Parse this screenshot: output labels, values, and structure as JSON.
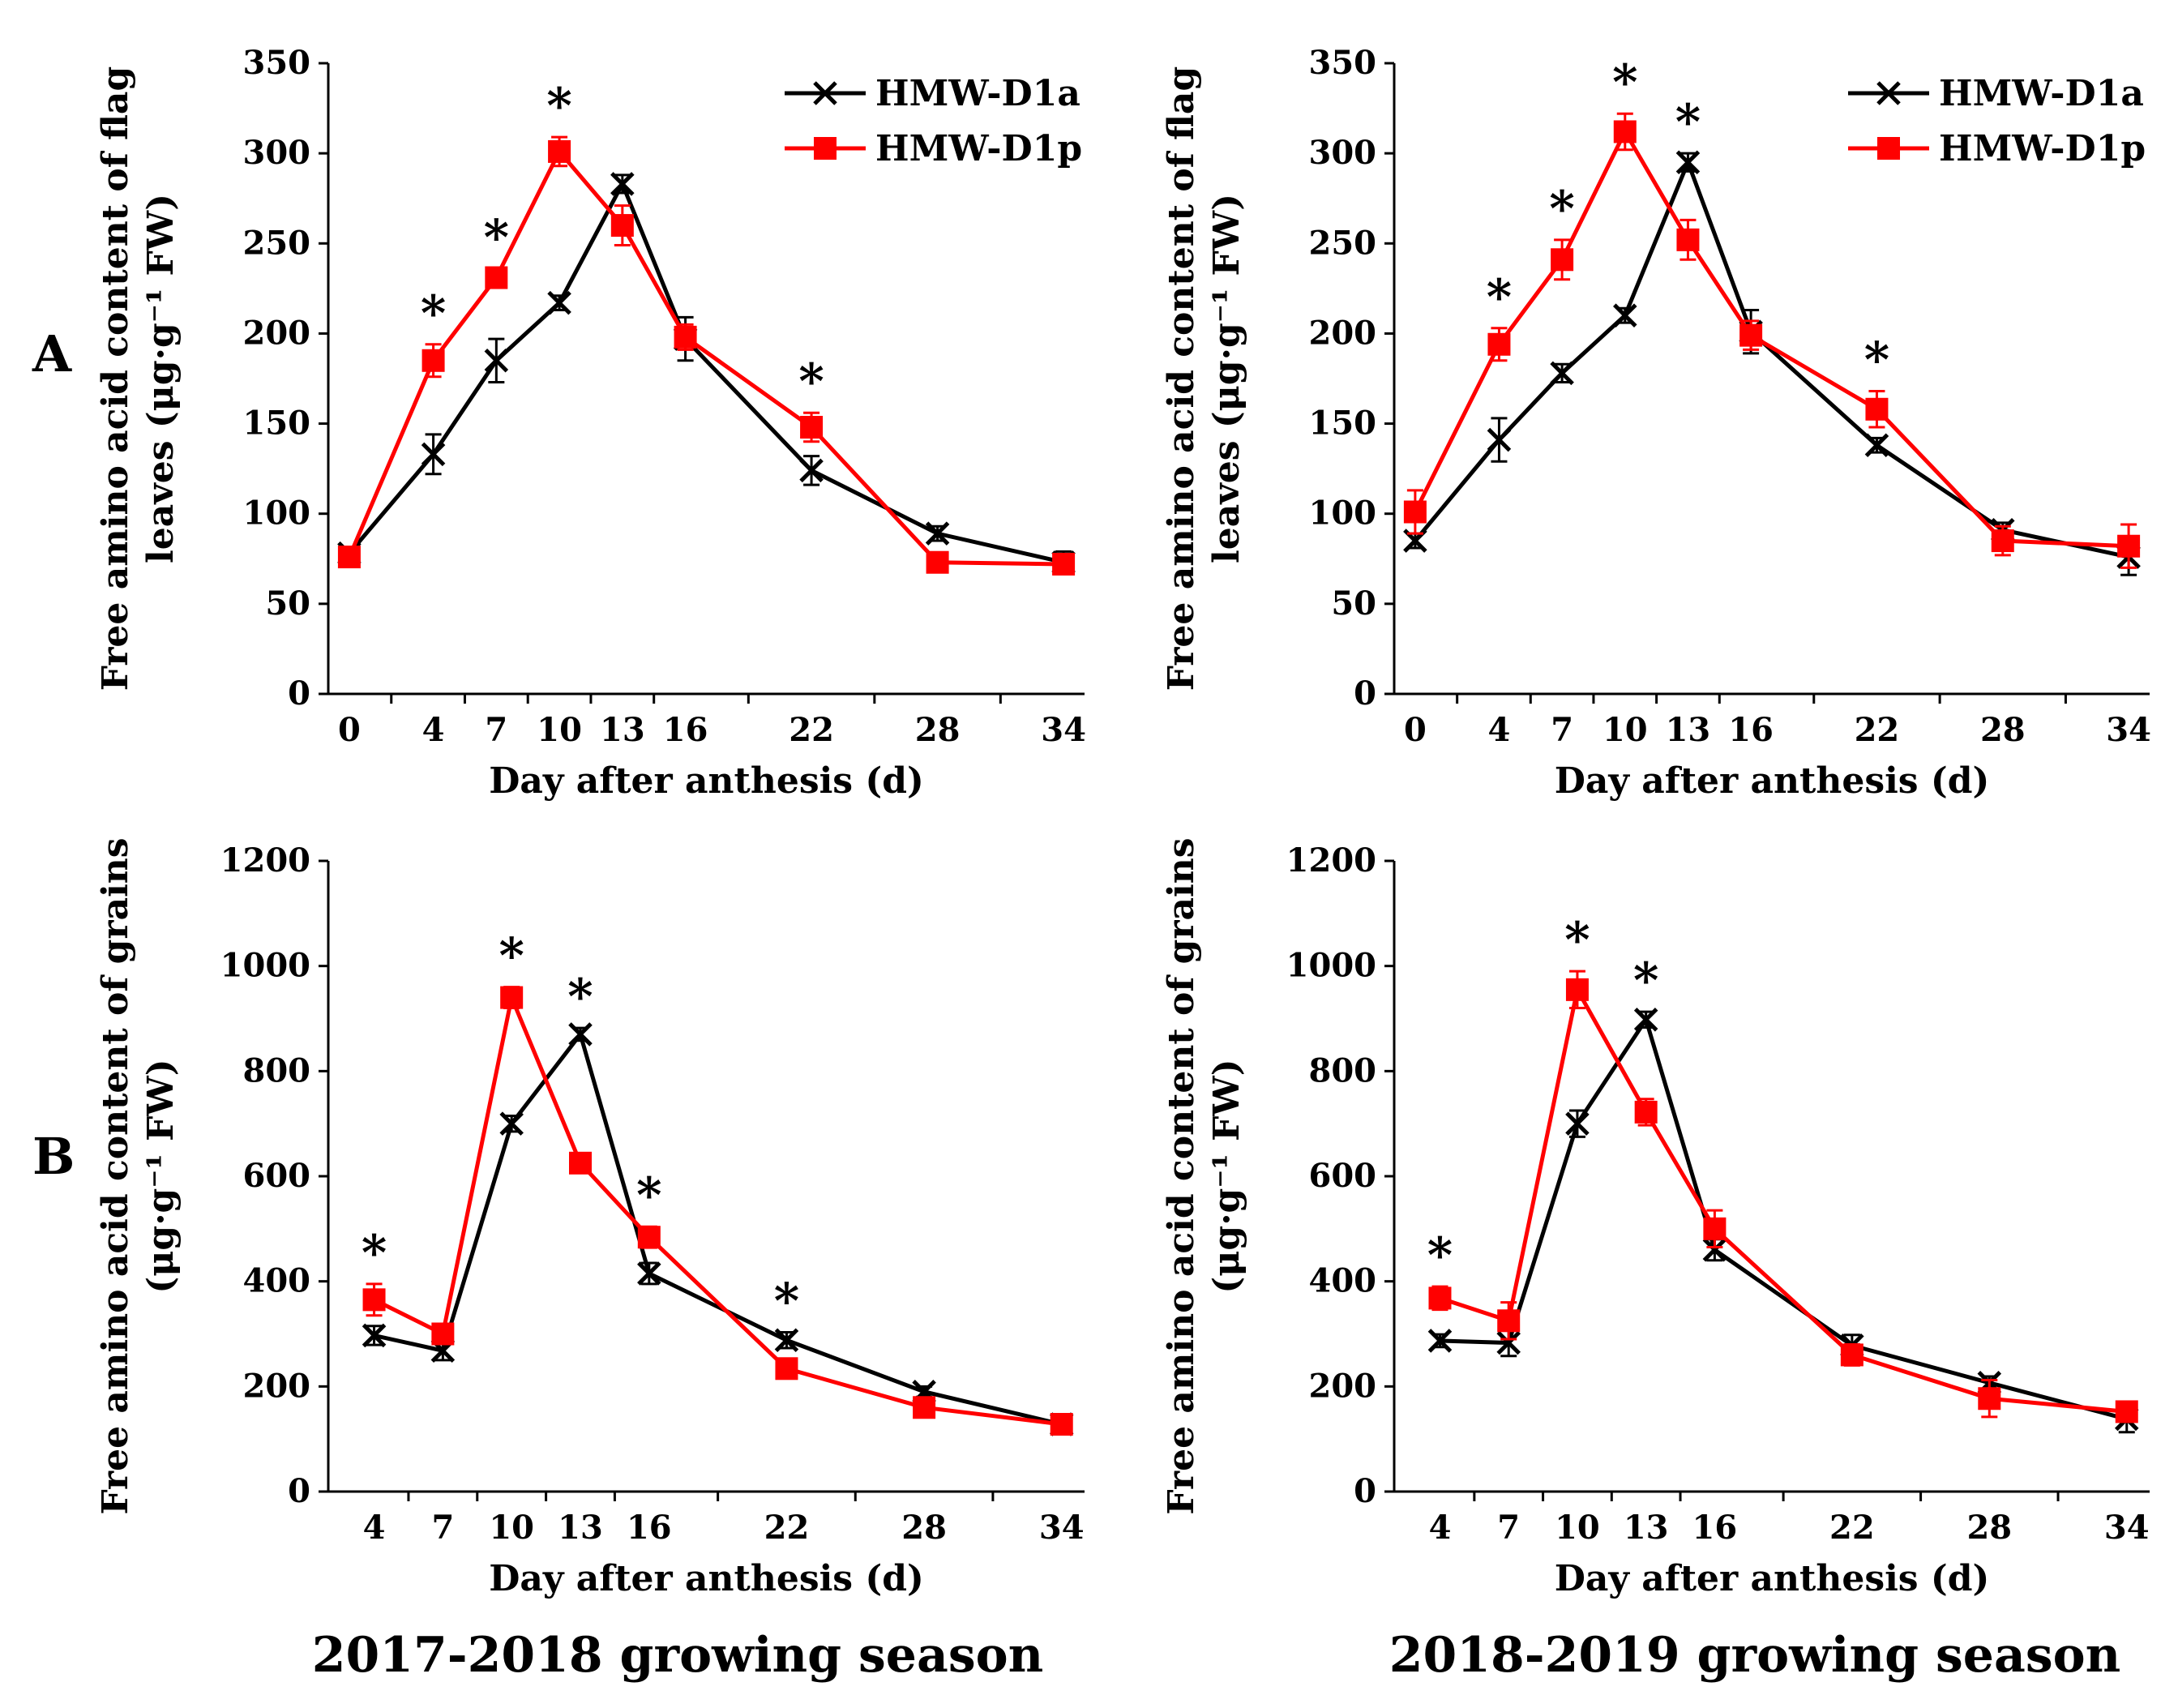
{
  "figure": {
    "row_labels": [
      "A",
      "B"
    ],
    "season_labels": [
      "2017-2018 growing season",
      "2018-2019 growing season"
    ]
  },
  "colors": {
    "d1a": "#000000",
    "d1p": "#ff0000"
  },
  "chart_data": [
    {
      "type": "line",
      "title": "",
      "xlabel": "Day after anthesis (d)",
      "ylabel": [
        "Free amino acid content of flag",
        "leaves (μg·g⁻¹ FW)"
      ],
      "x": [
        0,
        4,
        7,
        10,
        13,
        16,
        22,
        28,
        34
      ],
      "xticks": [
        "0",
        "4",
        "7",
        "10",
        "13",
        "16",
        "22",
        "28",
        "34"
      ],
      "xlim": [
        -1,
        35
      ],
      "ylim": [
        0,
        350
      ],
      "yticks": [
        "0",
        "50",
        "100",
        "150",
        "200",
        "250",
        "300",
        "350"
      ],
      "legend": [
        "HMW-D1a",
        "HMW-D1p"
      ],
      "series": [
        {
          "name": "HMW-D1a",
          "marker": "x",
          "values": [
            78,
            133,
            185,
            217,
            283,
            197,
            124,
            89,
            73
          ],
          "err": [
            3,
            11,
            12,
            4,
            5,
            12,
            8,
            4,
            6
          ]
        },
        {
          "name": "HMW-D1p",
          "marker": "square",
          "values": [
            76,
            185,
            231,
            301,
            260,
            198,
            148,
            73,
            72
          ],
          "err": [
            4,
            9,
            5,
            8,
            11,
            7,
            8,
            3,
            5
          ]
        }
      ],
      "significance_x": [
        4,
        7,
        10,
        22
      ]
    },
    {
      "type": "line",
      "title": "",
      "xlabel": "Day after anthesis (d)",
      "ylabel": [
        "Free amino acid content of flag",
        "leaves (μg·g⁻¹ FW)"
      ],
      "x": [
        0,
        4,
        7,
        10,
        13,
        16,
        22,
        28,
        34
      ],
      "xticks": [
        "0",
        "4",
        "7",
        "10",
        "13",
        "16",
        "22",
        "28",
        "34"
      ],
      "xlim": [
        -1,
        35
      ],
      "ylim": [
        0,
        350
      ],
      "yticks": [
        "0",
        "50",
        "100",
        "150",
        "200",
        "250",
        "300",
        "350"
      ],
      "legend": [
        "HMW-D1a",
        "HMW-D1p"
      ],
      "series": [
        {
          "name": "HMW-D1a",
          "marker": "x",
          "values": [
            85,
            141,
            178,
            210,
            295,
            201,
            138,
            91,
            76
          ],
          "err": [
            4,
            12,
            5,
            4,
            5,
            12,
            4,
            4,
            10
          ]
        },
        {
          "name": "HMW-D1p",
          "marker": "square",
          "values": [
            101,
            194,
            241,
            312,
            252,
            199,
            158,
            85,
            82
          ],
          "err": [
            12,
            9,
            11,
            10,
            11,
            8,
            10,
            8,
            12
          ]
        }
      ],
      "significance_x": [
        4,
        7,
        10,
        13,
        22
      ]
    },
    {
      "type": "line",
      "title": "",
      "xlabel": "Day after anthesis (d)",
      "ylabel": [
        "Free amino acid content of grains",
        "(μg·g⁻¹ FW)"
      ],
      "x": [
        4,
        7,
        10,
        13,
        16,
        22,
        28,
        34
      ],
      "xticks": [
        "4",
        "7",
        "10",
        "13",
        "16",
        "22",
        "28",
        "34"
      ],
      "xlim": [
        2,
        35
      ],
      "ylim": [
        0,
        1200
      ],
      "yticks": [
        "0",
        "200",
        "400",
        "600",
        "800",
        "1000",
        "1200"
      ],
      "legend": [],
      "series": [
        {
          "name": "HMW-D1a",
          "marker": "x",
          "values": [
            297,
            268,
            700,
            870,
            415,
            288,
            190,
            128
          ],
          "err": [
            18,
            18,
            15,
            12,
            20,
            15,
            10,
            18
          ]
        },
        {
          "name": "HMW-D1p",
          "marker": "square",
          "values": [
            365,
            300,
            940,
            625,
            484,
            234,
            160,
            128
          ],
          "err": [
            30,
            15,
            20,
            15,
            20,
            15,
            12,
            15
          ]
        }
      ],
      "significance_x": [
        4,
        10,
        13,
        16,
        22
      ]
    },
    {
      "type": "line",
      "title": "",
      "xlabel": "Day after anthesis (d)",
      "ylabel": [
        "Free amino acid content of grains",
        "(μg·g⁻¹ FW)"
      ],
      "x": [
        4,
        7,
        10,
        13,
        16,
        22,
        28,
        34
      ],
      "xticks": [
        "4",
        "7",
        "10",
        "13",
        "16",
        "22",
        "28",
        "34"
      ],
      "xlim": [
        2,
        35
      ],
      "ylim": [
        0,
        1200
      ],
      "yticks": [
        "0",
        "200",
        "400",
        "600",
        "800",
        "1000",
        "1200"
      ],
      "legend": [],
      "series": [
        {
          "name": "HMW-D1a",
          "marker": "x",
          "values": [
            287,
            283,
            700,
            898,
            460,
            278,
            207,
            138
          ],
          "err": [
            12,
            25,
            25,
            15,
            20,
            20,
            12,
            25
          ]
        },
        {
          "name": "HMW-D1p",
          "marker": "square",
          "values": [
            368,
            325,
            955,
            722,
            500,
            260,
            177,
            152
          ],
          "err": [
            22,
            35,
            35,
            25,
            35,
            20,
            35,
            15
          ]
        }
      ],
      "significance_x": [
        4,
        10,
        13
      ]
    }
  ]
}
